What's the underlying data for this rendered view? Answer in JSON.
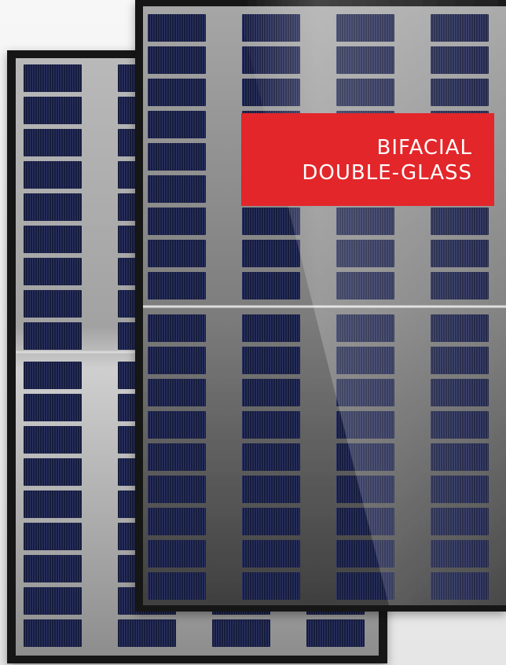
{
  "badge": {
    "line1": "BIFACIAL",
    "line2": "DOUBLE-GLASS",
    "color": "#e3262a",
    "text_color": "#ffffff"
  },
  "panels": {
    "frame_color": "#1a1a1a",
    "cell_color": "#141838",
    "glass_color": "#8e8e8e"
  }
}
